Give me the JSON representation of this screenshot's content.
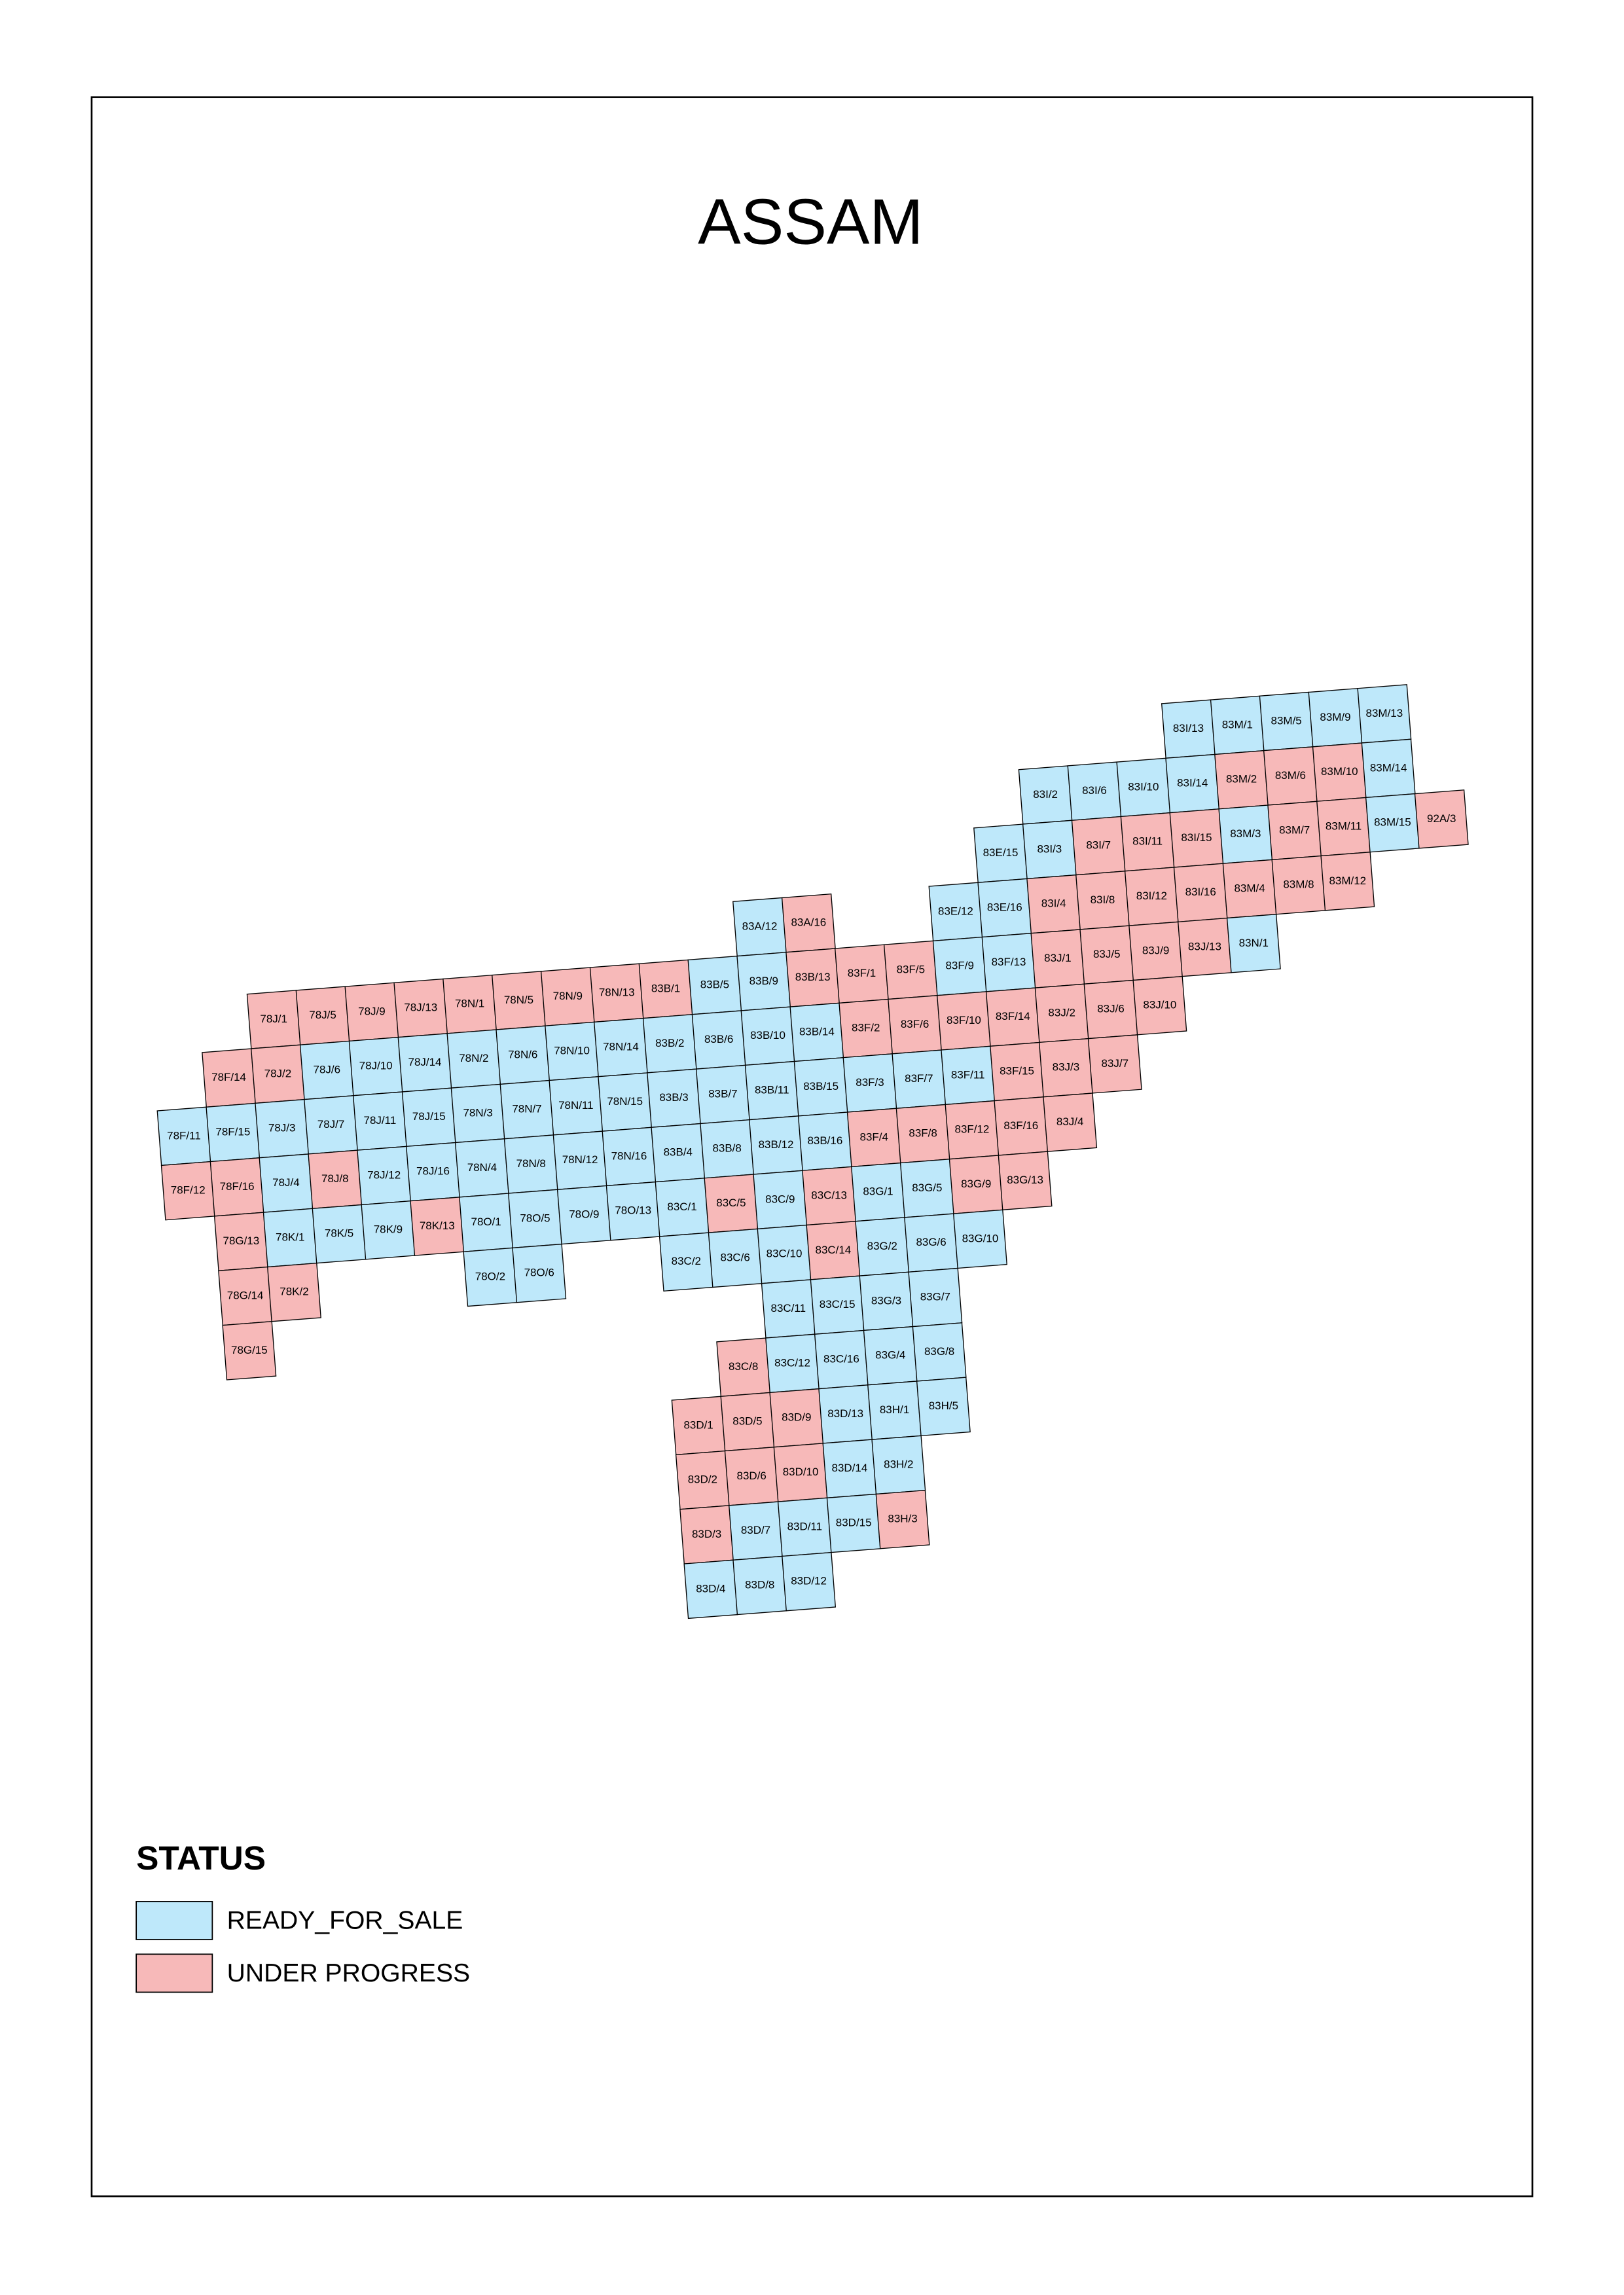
{
  "title": "ASSAM",
  "legend": {
    "title": "STATUS",
    "items": [
      {
        "label": "READY_FOR_SALE",
        "color": "#bee8fa"
      },
      {
        "label": "UNDER PROGRESS",
        "color": "#f7b9b9"
      }
    ]
  },
  "tiles": [
    {
      "label": "83I/13",
      "status": "READY_FOR_SALE"
    },
    {
      "label": "83M/1",
      "status": "READY_FOR_SALE"
    },
    {
      "label": "83M/5",
      "status": "READY_FOR_SALE"
    },
    {
      "label": "83M/9",
      "status": "READY_FOR_SALE"
    },
    {
      "label": "83M/13",
      "status": "READY_FOR_SALE"
    },
    {
      "label": "83I/2",
      "status": "READY_FOR_SALE"
    },
    {
      "label": "83I/6",
      "status": "READY_FOR_SALE"
    },
    {
      "label": "83I/10",
      "status": "READY_FOR_SALE"
    },
    {
      "label": "83I/14",
      "status": "READY_FOR_SALE"
    },
    {
      "label": "83M/2",
      "status": "UNDER PROGRESS"
    },
    {
      "label": "83M/6",
      "status": "UNDER PROGRESS"
    },
    {
      "label": "83M/10",
      "status": "UNDER PROGRESS"
    },
    {
      "label": "83M/14",
      "status": "READY_FOR_SALE"
    },
    {
      "label": "83E/15",
      "status": "READY_FOR_SALE"
    },
    {
      "label": "83I/3",
      "status": "READY_FOR_SALE"
    },
    {
      "label": "83I/7",
      "status": "UNDER PROGRESS"
    },
    {
      "label": "83I/11",
      "status": "UNDER PROGRESS"
    },
    {
      "label": "83I/15",
      "status": "UNDER PROGRESS"
    },
    {
      "label": "83M/3",
      "status": "READY_FOR_SALE"
    },
    {
      "label": "83M/7",
      "status": "UNDER PROGRESS"
    },
    {
      "label": "83M/11",
      "status": "UNDER PROGRESS"
    },
    {
      "label": "83M/15",
      "status": "READY_FOR_SALE"
    },
    {
      "label": "92A/3",
      "status": "UNDER PROGRESS"
    },
    {
      "label": "83A/12",
      "status": "READY_FOR_SALE"
    },
    {
      "label": "83A/16",
      "status": "UNDER PROGRESS"
    },
    {
      "label": "83E/12",
      "status": "READY_FOR_SALE"
    },
    {
      "label": "83E/16",
      "status": "READY_FOR_SALE"
    },
    {
      "label": "83I/4",
      "status": "UNDER PROGRESS"
    },
    {
      "label": "83I/8",
      "status": "UNDER PROGRESS"
    },
    {
      "label": "83I/12",
      "status": "UNDER PROGRESS"
    },
    {
      "label": "83I/16",
      "status": "UNDER PROGRESS"
    },
    {
      "label": "83M/4",
      "status": "UNDER PROGRESS"
    },
    {
      "label": "83M/8",
      "status": "UNDER PROGRESS"
    },
    {
      "label": "83M/12",
      "status": "UNDER PROGRESS"
    },
    {
      "label": "78J/1",
      "status": "UNDER PROGRESS"
    },
    {
      "label": "78J/5",
      "status": "UNDER PROGRESS"
    },
    {
      "label": "78J/9",
      "status": "UNDER PROGRESS"
    },
    {
      "label": "78J/13",
      "status": "UNDER PROGRESS"
    },
    {
      "label": "78N/1",
      "status": "UNDER PROGRESS"
    },
    {
      "label": "78N/5",
      "status": "UNDER PROGRESS"
    },
    {
      "label": "78N/9",
      "status": "UNDER PROGRESS"
    },
    {
      "label": "78N/13",
      "status": "UNDER PROGRESS"
    },
    {
      "label": "83B/1",
      "status": "UNDER PROGRESS"
    },
    {
      "label": "83B/5",
      "status": "READY_FOR_SALE"
    },
    {
      "label": "83B/9",
      "status": "READY_FOR_SALE"
    },
    {
      "label": "83B/13",
      "status": "UNDER PROGRESS"
    },
    {
      "label": "83F/1",
      "status": "UNDER PROGRESS"
    },
    {
      "label": "83F/5",
      "status": "UNDER PROGRESS"
    },
    {
      "label": "83F/9",
      "status": "READY_FOR_SALE"
    },
    {
      "label": "83F/13",
      "status": "READY_FOR_SALE"
    },
    {
      "label": "83J/1",
      "status": "UNDER PROGRESS"
    },
    {
      "label": "83J/5",
      "status": "UNDER PROGRESS"
    },
    {
      "label": "83J/9",
      "status": "UNDER PROGRESS"
    },
    {
      "label": "83J/13",
      "status": "UNDER PROGRESS"
    },
    {
      "label": "83N/1",
      "status": "READY_FOR_SALE"
    },
    {
      "label": "78F/14",
      "status": "UNDER PROGRESS"
    },
    {
      "label": "78J/2",
      "status": "UNDER PROGRESS"
    },
    {
      "label": "78J/6",
      "status": "READY_FOR_SALE"
    },
    {
      "label": "78J/10",
      "status": "READY_FOR_SALE"
    },
    {
      "label": "78J/14",
      "status": "READY_FOR_SALE"
    },
    {
      "label": "78N/2",
      "status": "READY_FOR_SALE"
    },
    {
      "label": "78N/6",
      "status": "READY_FOR_SALE"
    },
    {
      "label": "78N/10",
      "status": "READY_FOR_SALE"
    },
    {
      "label": "78N/14",
      "status": "READY_FOR_SALE"
    },
    {
      "label": "83B/2",
      "status": "READY_FOR_SALE"
    },
    {
      "label": "83B/6",
      "status": "READY_FOR_SALE"
    },
    {
      "label": "83B/10",
      "status": "READY_FOR_SALE"
    },
    {
      "label": "83B/14",
      "status": "READY_FOR_SALE"
    },
    {
      "label": "83F/2",
      "status": "UNDER PROGRESS"
    },
    {
      "label": "83F/6",
      "status": "UNDER PROGRESS"
    },
    {
      "label": "83F/10",
      "status": "UNDER PROGRESS"
    },
    {
      "label": "83F/14",
      "status": "UNDER PROGRESS"
    },
    {
      "label": "83J/2",
      "status": "UNDER PROGRESS"
    },
    {
      "label": "83J/6",
      "status": "UNDER PROGRESS"
    },
    {
      "label": "83J/10",
      "status": "UNDER PROGRESS"
    },
    {
      "label": "78F/11",
      "status": "READY_FOR_SALE"
    },
    {
      "label": "78F/15",
      "status": "READY_FOR_SALE"
    },
    {
      "label": "78J/3",
      "status": "READY_FOR_SALE"
    },
    {
      "label": "78J/7",
      "status": "READY_FOR_SALE"
    },
    {
      "label": "78J/11",
      "status": "READY_FOR_SALE"
    },
    {
      "label": "78J/15",
      "status": "READY_FOR_SALE"
    },
    {
      "label": "78N/3",
      "status": "READY_FOR_SALE"
    },
    {
      "label": "78N/7",
      "status": "READY_FOR_SALE"
    },
    {
      "label": "78N/11",
      "status": "READY_FOR_SALE"
    },
    {
      "label": "78N/15",
      "status": "READY_FOR_SALE"
    },
    {
      "label": "83B/3",
      "status": "READY_FOR_SALE"
    },
    {
      "label": "83B/7",
      "status": "READY_FOR_SALE"
    },
    {
      "label": "83B/11",
      "status": "READY_FOR_SALE"
    },
    {
      "label": "83B/15",
      "status": "READY_FOR_SALE"
    },
    {
      "label": "83F/3",
      "status": "READY_FOR_SALE"
    },
    {
      "label": "83F/7",
      "status": "READY_FOR_SALE"
    },
    {
      "label": "83F/11",
      "status": "READY_FOR_SALE"
    },
    {
      "label": "83F/15",
      "status": "UNDER PROGRESS"
    },
    {
      "label": "83J/3",
      "status": "UNDER PROGRESS"
    },
    {
      "label": "83J/7",
      "status": "UNDER PROGRESS"
    },
    {
      "label": "78F/12",
      "status": "UNDER PROGRESS"
    },
    {
      "label": "78F/16",
      "status": "UNDER PROGRESS"
    },
    {
      "label": "78J/4",
      "status": "READY_FOR_SALE"
    },
    {
      "label": "78J/8",
      "status": "UNDER PROGRESS"
    },
    {
      "label": "78J/12",
      "status": "READY_FOR_SALE"
    },
    {
      "label": "78J/16",
      "status": "READY_FOR_SALE"
    },
    {
      "label": "78N/4",
      "status": "READY_FOR_SALE"
    },
    {
      "label": "78N/8",
      "status": "READY_FOR_SALE"
    },
    {
      "label": "78N/12",
      "status": "READY_FOR_SALE"
    },
    {
      "label": "78N/16",
      "status": "READY_FOR_SALE"
    },
    {
      "label": "83B/4",
      "status": "READY_FOR_SALE"
    },
    {
      "label": "83B/8",
      "status": "READY_FOR_SALE"
    },
    {
      "label": "83B/12",
      "status": "READY_FOR_SALE"
    },
    {
      "label": "83B/16",
      "status": "READY_FOR_SALE"
    },
    {
      "label": "83F/4",
      "status": "UNDER PROGRESS"
    },
    {
      "label": "83F/8",
      "status": "UNDER PROGRESS"
    },
    {
      "label": "83F/12",
      "status": "UNDER PROGRESS"
    },
    {
      "label": "83F/16",
      "status": "UNDER PROGRESS"
    },
    {
      "label": "83J/4",
      "status": "UNDER PROGRESS"
    },
    {
      "label": "78G/13",
      "status": "UNDER PROGRESS"
    },
    {
      "label": "78K/1",
      "status": "READY_FOR_SALE"
    },
    {
      "label": "78K/5",
      "status": "READY_FOR_SALE"
    },
    {
      "label": "78K/9",
      "status": "READY_FOR_SALE"
    },
    {
      "label": "78K/13",
      "status": "UNDER PROGRESS"
    },
    {
      "label": "78O/1",
      "status": "READY_FOR_SALE"
    },
    {
      "label": "78O/5",
      "status": "READY_FOR_SALE"
    },
    {
      "label": "78O/9",
      "status": "READY_FOR_SALE"
    },
    {
      "label": "78O/13",
      "status": "READY_FOR_SALE"
    },
    {
      "label": "83C/1",
      "status": "READY_FOR_SALE"
    },
    {
      "label": "83C/5",
      "status": "UNDER PROGRESS"
    },
    {
      "label": "83C/9",
      "status": "READY_FOR_SALE"
    },
    {
      "label": "83C/13",
      "status": "UNDER PROGRESS"
    },
    {
      "label": "83G/1",
      "status": "READY_FOR_SALE"
    },
    {
      "label": "83G/5",
      "status": "READY_FOR_SALE"
    },
    {
      "label": "83G/9",
      "status": "UNDER PROGRESS"
    },
    {
      "label": "83G/13",
      "status": "UNDER PROGRESS"
    },
    {
      "label": "78G/14",
      "status": "UNDER PROGRESS"
    },
    {
      "label": "78K/2",
      "status": "UNDER PROGRESS"
    },
    {
      "label": "78O/2",
      "status": "READY_FOR_SALE"
    },
    {
      "label": "78O/6",
      "status": "READY_FOR_SALE"
    },
    {
      "label": "83C/2",
      "status": "READY_FOR_SALE"
    },
    {
      "label": "83C/6",
      "status": "READY_FOR_SALE"
    },
    {
      "label": "83C/10",
      "status": "READY_FOR_SALE"
    },
    {
      "label": "83C/14",
      "status": "UNDER PROGRESS"
    },
    {
      "label": "83G/2",
      "status": "READY_FOR_SALE"
    },
    {
      "label": "83G/6",
      "status": "READY_FOR_SALE"
    },
    {
      "label": "83G/10",
      "status": "READY_FOR_SALE"
    },
    {
      "label": "78G/15",
      "status": "UNDER PROGRESS"
    },
    {
      "label": "83C/11",
      "status": "READY_FOR_SALE"
    },
    {
      "label": "83C/15",
      "status": "READY_FOR_SALE"
    },
    {
      "label": "83G/3",
      "status": "READY_FOR_SALE"
    },
    {
      "label": "83G/7",
      "status": "READY_FOR_SALE"
    },
    {
      "label": "83C/8",
      "status": "UNDER PROGRESS"
    },
    {
      "label": "83C/12",
      "status": "READY_FOR_SALE"
    },
    {
      "label": "83C/16",
      "status": "READY_FOR_SALE"
    },
    {
      "label": "83G/4",
      "status": "READY_FOR_SALE"
    },
    {
      "label": "83G/8",
      "status": "READY_FOR_SALE"
    },
    {
      "label": "83D/1",
      "status": "UNDER PROGRESS"
    },
    {
      "label": "83D/5",
      "status": "UNDER PROGRESS"
    },
    {
      "label": "83D/9",
      "status": "UNDER PROGRESS"
    },
    {
      "label": "83D/13",
      "status": "READY_FOR_SALE"
    },
    {
      "label": "83H/1",
      "status": "READY_FOR_SALE"
    },
    {
      "label": "83H/5",
      "status": "READY_FOR_SALE"
    },
    {
      "label": "83D/2",
      "status": "UNDER PROGRESS"
    },
    {
      "label": "83D/6",
      "status": "UNDER PROGRESS"
    },
    {
      "label": "83D/10",
      "status": "UNDER PROGRESS"
    },
    {
      "label": "83D/14",
      "status": "READY_FOR_SALE"
    },
    {
      "label": "83H/2",
      "status": "READY_FOR_SALE"
    },
    {
      "label": "83D/3",
      "status": "UNDER PROGRESS"
    },
    {
      "label": "83D/7",
      "status": "READY_FOR_SALE"
    },
    {
      "label": "83D/11",
      "status": "READY_FOR_SALE"
    },
    {
      "label": "83D/15",
      "status": "READY_FOR_SALE"
    },
    {
      "label": "83H/3",
      "status": "UNDER PROGRESS"
    },
    {
      "label": "83D/4",
      "status": "READY_FOR_SALE"
    },
    {
      "label": "83D/8",
      "status": "READY_FOR_SALE"
    },
    {
      "label": "83D/12",
      "status": "READY_FOR_SALE"
    }
  ]
}
